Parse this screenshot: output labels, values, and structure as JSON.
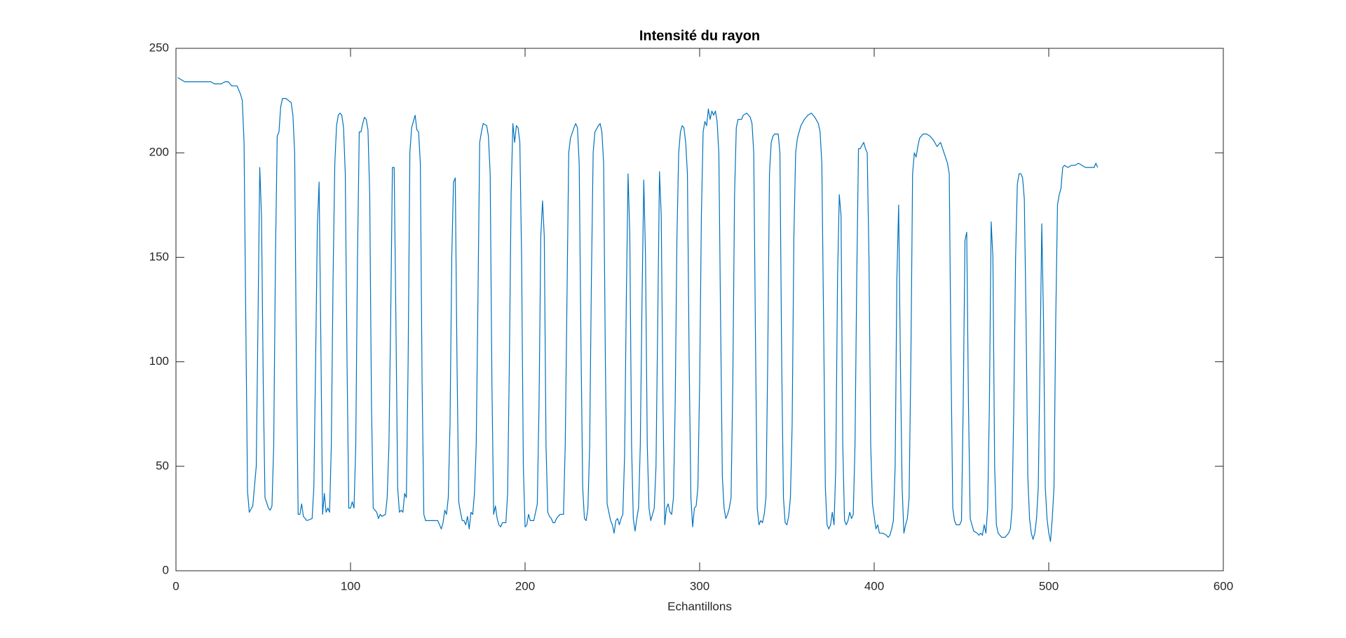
{
  "chart_data": {
    "type": "line",
    "title": "Intensité du rayon",
    "x_label": "Echantillons",
    "xlim": [
      0,
      600
    ],
    "xticks": [
      0,
      100,
      200,
      300,
      400,
      500,
      600
    ],
    "ylim": [
      0,
      250
    ],
    "yticks": [
      0,
      50,
      100,
      150,
      200,
      250
    ],
    "grid": false,
    "color": "#0072bd",
    "x": [
      1,
      3,
      5,
      20,
      22,
      26,
      28,
      30,
      32,
      35,
      37,
      38,
      39,
      40,
      41,
      42,
      44,
      46,
      47,
      48,
      49,
      50,
      51,
      53,
      54,
      55,
      56,
      57,
      58,
      59,
      60,
      61,
      63,
      66,
      67,
      68,
      69,
      70,
      71,
      72,
      73,
      75,
      78,
      79,
      80,
      81,
      82,
      83,
      84,
      85,
      86,
      87,
      88,
      89,
      90,
      91,
      92,
      93,
      94,
      95,
      96,
      97,
      98,
      99,
      100,
      101,
      102,
      103,
      104,
      105,
      106,
      107,
      108,
      109,
      110,
      111,
      112,
      113,
      115,
      116,
      117,
      118,
      120,
      121,
      122,
      123,
      124,
      125,
      126,
      127,
      128,
      129,
      130,
      131,
      132,
      133,
      134,
      135,
      136,
      137,
      138,
      139,
      140,
      141,
      142,
      143,
      150,
      152,
      153,
      154,
      155,
      156,
      157,
      158,
      159,
      160,
      161,
      162,
      163,
      164,
      165,
      166,
      167,
      168,
      169,
      170,
      171,
      172,
      173,
      174,
      175,
      176,
      178,
      179,
      180,
      181,
      182,
      183,
      184,
      185,
      186,
      187,
      189,
      190,
      191,
      192,
      193,
      194,
      195,
      196,
      197,
      198,
      199,
      200,
      201,
      202,
      203,
      205,
      206,
      207,
      208,
      209,
      210,
      211,
      212,
      213,
      214,
      215,
      216,
      217,
      218,
      220,
      222,
      223,
      224,
      225,
      226,
      228,
      229,
      230,
      231,
      232,
      233,
      234,
      235,
      236,
      237,
      238,
      239,
      240,
      242,
      243,
      244,
      245,
      246,
      247,
      248,
      249,
      250,
      251,
      252,
      253,
      254,
      255,
      256,
      257,
      258,
      259,
      260,
      261,
      262,
      263,
      264,
      265,
      266,
      267,
      268,
      269,
      270,
      271,
      272,
      273,
      274,
      275,
      276,
      277,
      278,
      279,
      280,
      281,
      282,
      283,
      284,
      285,
      286,
      287,
      288,
      289,
      290,
      291,
      292,
      293,
      294,
      295,
      296,
      297,
      298,
      299,
      300,
      301,
      302,
      303,
      304,
      305,
      306,
      307,
      308,
      309,
      310,
      311,
      312,
      313,
      314,
      315,
      316,
      317,
      318,
      319,
      320,
      321,
      322,
      324,
      325,
      327,
      329,
      330,
      331,
      332,
      333,
      334,
      335,
      336,
      337,
      338,
      339,
      340,
      341,
      342,
      343,
      345,
      346,
      347,
      348,
      349,
      350,
      351,
      352,
      353,
      354,
      355,
      356,
      358,
      360,
      362,
      364,
      365,
      366,
      368,
      369,
      370,
      371,
      372,
      373,
      374,
      375,
      376,
      377,
      378,
      379,
      380,
      381,
      382,
      383,
      384,
      385,
      386,
      387,
      388,
      389,
      390,
      391,
      392,
      394,
      395,
      396,
      397,
      398,
      399,
      400,
      401,
      402,
      403,
      405,
      407,
      408,
      409,
      410,
      411,
      412,
      413,
      414,
      415,
      416,
      417,
      418,
      419,
      420,
      421,
      422,
      423,
      424,
      425,
      426,
      428,
      430,
      432,
      434,
      436,
      438,
      440,
      442,
      443,
      444,
      445,
      446,
      447,
      449,
      450,
      451,
      452,
      453,
      454,
      455,
      456,
      457,
      459,
      460,
      461,
      462,
      463,
      464,
      465,
      466,
      467,
      468,
      469,
      470,
      471,
      473,
      475,
      476,
      477,
      478,
      479,
      480,
      481,
      482,
      483,
      484,
      485,
      486,
      487,
      488,
      489,
      490,
      491,
      492,
      493,
      494,
      495,
      496,
      497,
      498,
      499,
      500,
      501,
      502,
      503,
      504,
      505,
      506,
      507,
      508,
      509,
      511,
      513,
      515,
      517,
      519,
      521,
      526,
      527,
      528
    ],
    "values": [
      236,
      235,
      234,
      234,
      233,
      233,
      234,
      234,
      232,
      232,
      228,
      225,
      205,
      120,
      38,
      28,
      31,
      50,
      120,
      193,
      170,
      90,
      35,
      30,
      29,
      31,
      60,
      150,
      208,
      210,
      222,
      226,
      226,
      224,
      218,
      200,
      100,
      27,
      27,
      32,
      26,
      24,
      25,
      40,
      100,
      165,
      186,
      110,
      27,
      37,
      28,
      30,
      28,
      60,
      140,
      195,
      213,
      218,
      219,
      218,
      212,
      190,
      100,
      30,
      30,
      33,
      30,
      60,
      150,
      210,
      210,
      214,
      217,
      216,
      211,
      180,
      80,
      30,
      28,
      25,
      27,
      26,
      27,
      35,
      60,
      120,
      193,
      193,
      120,
      40,
      28,
      29,
      28,
      37,
      35,
      100,
      200,
      212,
      215,
      218,
      211,
      210,
      195,
      90,
      27,
      24,
      24,
      20,
      23,
      29,
      27,
      35,
      70,
      150,
      186,
      188,
      100,
      33,
      28,
      24,
      24,
      22,
      26,
      20,
      28,
      27,
      37,
      60,
      130,
      205,
      210,
      214,
      213,
      208,
      190,
      90,
      27,
      31,
      25,
      22,
      21,
      23,
      23,
      37,
      100,
      180,
      214,
      205,
      213,
      212,
      205,
      150,
      50,
      21,
      22,
      27,
      24,
      24,
      28,
      32,
      80,
      160,
      177,
      160,
      60,
      28,
      26,
      25,
      23,
      23,
      25,
      27,
      27,
      60,
      130,
      200,
      207,
      212,
      214,
      212,
      195,
      110,
      40,
      25,
      24,
      30,
      60,
      140,
      200,
      210,
      213,
      214,
      210,
      195,
      100,
      32,
      28,
      24,
      22,
      18,
      24,
      25,
      22,
      25,
      27,
      55,
      130,
      190,
      160,
      60,
      25,
      19,
      25,
      30,
      60,
      130,
      187,
      150,
      60,
      30,
      24,
      27,
      30,
      50,
      120,
      191,
      170,
      80,
      22,
      30,
      32,
      28,
      27,
      35,
      80,
      160,
      200,
      210,
      213,
      212,
      205,
      190,
      100,
      35,
      21,
      30,
      31,
      40,
      90,
      170,
      210,
      215,
      213,
      221,
      216,
      220,
      218,
      220,
      215,
      200,
      120,
      45,
      30,
      25,
      27,
      30,
      35,
      90,
      180,
      212,
      216,
      216,
      218,
      219,
      217,
      214,
      200,
      110,
      30,
      22,
      24,
      23,
      27,
      35,
      100,
      190,
      205,
      208,
      209,
      209,
      200,
      100,
      35,
      23,
      22,
      26,
      35,
      70,
      160,
      200,
      207,
      213,
      216,
      218,
      219,
      218,
      217,
      214,
      210,
      195,
      120,
      40,
      22,
      20,
      22,
      28,
      22,
      50,
      140,
      180,
      170,
      60,
      24,
      22,
      24,
      28,
      25,
      27,
      60,
      140,
      202,
      202,
      205,
      202,
      200,
      150,
      60,
      32,
      26,
      20,
      22,
      18,
      18,
      17,
      16,
      17,
      20,
      24,
      50,
      140,
      175,
      100,
      40,
      18,
      22,
      25,
      35,
      100,
      190,
      200,
      198,
      203,
      207,
      209,
      209,
      208,
      206,
      203,
      205,
      200,
      195,
      190,
      100,
      30,
      24,
      22,
      22,
      24,
      80,
      158,
      162,
      80,
      25,
      22,
      19,
      18,
      17,
      18,
      17,
      22,
      18,
      30,
      80,
      167,
      150,
      50,
      22,
      18,
      16,
      16,
      17,
      18,
      20,
      30,
      80,
      150,
      185,
      190,
      190,
      188,
      178,
      120,
      45,
      25,
      18,
      15,
      18,
      25,
      40,
      100,
      166,
      120,
      40,
      25,
      18,
      14,
      25,
      40,
      120,
      175,
      180,
      183,
      193,
      194,
      193,
      194,
      194,
      195,
      194,
      193,
      193,
      195,
      193
    ]
  }
}
